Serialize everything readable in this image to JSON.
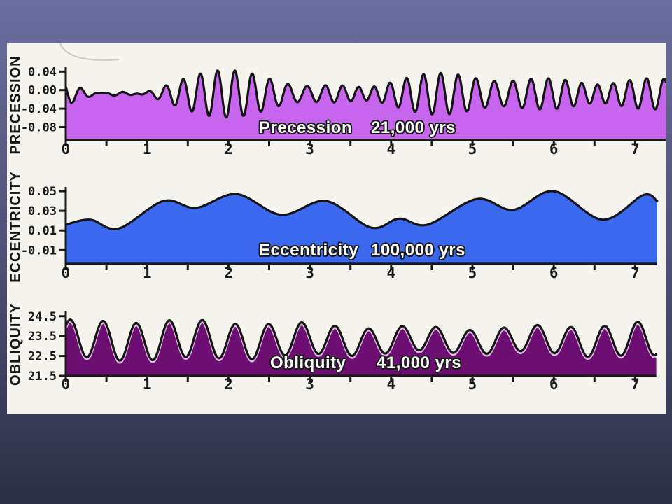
{
  "slide": {
    "background_top": "#6c6e9e",
    "background_mid": "#4b4d73",
    "background_bottom": "#2d2f45",
    "panel_color": "#f6f4ef"
  },
  "chart_data": [
    {
      "id": "precession",
      "type": "area",
      "y_axis_label": "PRECESSION",
      "series_label": "Precession",
      "period_label": "21,000 yrs",
      "fill_color": "#c765ee",
      "line_color": "#141414",
      "x_range": [
        0,
        7.38
      ],
      "x_ticks": [
        0,
        1,
        2,
        3,
        4,
        5,
        6,
        7
      ],
      "x_minor_step": 0.5,
      "y_range": [
        -0.108,
        0.052
      ],
      "y_ticks": [
        {
          "v": 0.04,
          "label": "0.04"
        },
        {
          "v": 0.0,
          "label": "0.00"
        },
        {
          "v": -0.04,
          "label": "-0.04"
        },
        {
          "v": -0.08,
          "label": "-0.08"
        }
      ],
      "grid": false,
      "model": {
        "kind": "sum_of_sines",
        "base": -0.008,
        "components": [
          [
            0.024,
            0.212,
            2.6
          ],
          [
            0.016,
            0.2285,
            0.9
          ],
          [
            0.012,
            0.1945,
            4.0
          ]
        ]
      }
    },
    {
      "id": "eccentricity",
      "type": "area",
      "y_axis_label": "ECCENTRICITY",
      "series_label": "Eccentricity",
      "period_label": "100,000 yrs",
      "fill_color": "#3a68ef",
      "line_color": "#141414",
      "x_range": [
        0,
        7.27
      ],
      "x_ticks": [
        0,
        1,
        2,
        3,
        4,
        5,
        6,
        7
      ],
      "x_minor_step": 0.5,
      "y_range": [
        -0.024,
        0.055
      ],
      "y_ticks": [
        {
          "v": 0.05,
          "label": "0.05"
        },
        {
          "v": 0.03,
          "label": "0.03"
        },
        {
          "v": 0.01,
          "label": "0.01"
        },
        {
          "v": -0.01,
          "label": "-0.01"
        }
      ],
      "grid": false,
      "model": {
        "kind": "points",
        "points": [
          [
            0,
            0.016
          ],
          [
            0.3,
            0.021
          ],
          [
            0.65,
            0.012
          ],
          [
            1.2,
            0.04
          ],
          [
            1.6,
            0.033
          ],
          [
            2.1,
            0.047
          ],
          [
            2.65,
            0.026
          ],
          [
            3.2,
            0.04
          ],
          [
            3.75,
            0.013
          ],
          [
            4.1,
            0.022
          ],
          [
            4.45,
            0.016
          ],
          [
            5.05,
            0.042
          ],
          [
            5.5,
            0.031
          ],
          [
            6.0,
            0.05
          ],
          [
            6.6,
            0.021
          ],
          [
            7.1,
            0.046
          ],
          [
            7.27,
            0.04
          ]
        ]
      }
    },
    {
      "id": "obliquity",
      "type": "area",
      "y_axis_label": "OBLIQUITY",
      "series_label": "Obliquity",
      "period_label": "41,000 yrs",
      "fill_color": "#6d0e73",
      "halo_color": "#dcb9dc",
      "line_color": "#141414",
      "x_range": [
        0,
        7.26
      ],
      "x_ticks": [
        0,
        1,
        2,
        3,
        4,
        5,
        6,
        7
      ],
      "x_minor_step": 0.5,
      "y_range": [
        21.5,
        24.65
      ],
      "y_ticks": [
        {
          "v": 24.5,
          "label": "24.5"
        },
        {
          "v": 23.5,
          "label": "23.5"
        },
        {
          "v": 22.5,
          "label": "22.5"
        },
        {
          "v": 21.5,
          "label": "21.5"
        }
      ],
      "grid": false,
      "model": {
        "kind": "sum_of_sines",
        "base": 23.3,
        "components": [
          [
            0.78,
            0.41,
            0.85
          ],
          [
            0.18,
            0.39,
            0.2
          ],
          [
            0.1,
            1.4,
            1.0
          ]
        ]
      }
    }
  ]
}
